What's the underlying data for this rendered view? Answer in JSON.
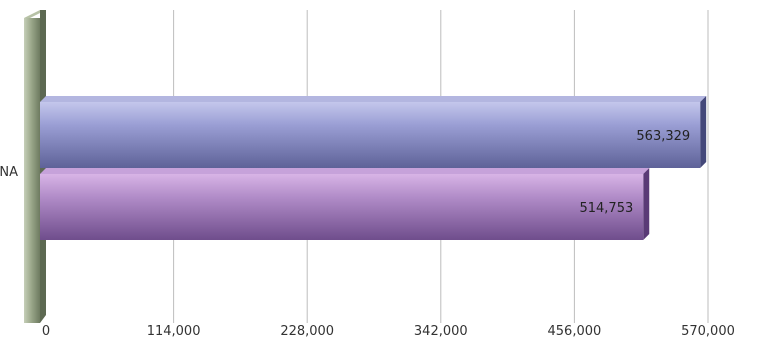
{
  "chart_data": {
    "type": "bar",
    "orientation": "horizontal",
    "style": "3d",
    "categories": [
      "NA"
    ],
    "series": [
      {
        "values": [
          563329
        ],
        "data_labels": [
          "563,329"
        ],
        "color": "#7e82c0"
      },
      {
        "values": [
          514753
        ],
        "data_labels": [
          "514,753"
        ],
        "color": "#9e77b8"
      }
    ],
    "xlim": [
      0,
      570000
    ],
    "x_ticks": [
      0,
      114000,
      228000,
      342000,
      456000,
      570000
    ],
    "x_tick_labels": [
      "0",
      "114,000",
      "228,000",
      "342,000",
      "456,000",
      "570,000"
    ],
    "grid": true,
    "title": "",
    "xlabel": "",
    "ylabel": ""
  }
}
